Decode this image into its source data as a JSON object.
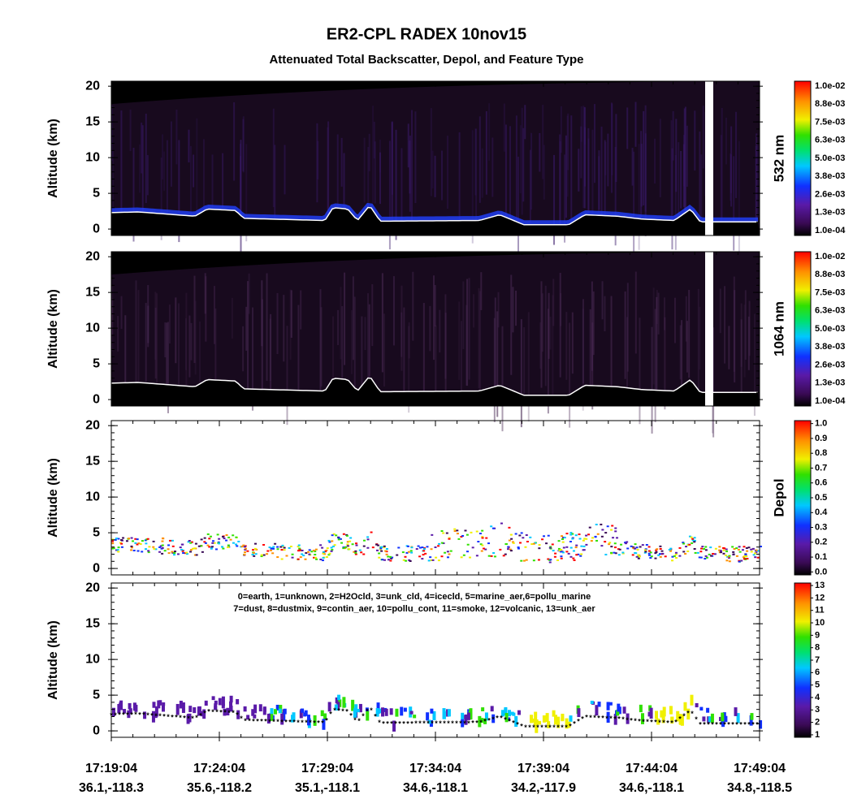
{
  "title": "ER2-CPL RADEX 10nov15",
  "subtitle": "Attenuated Total Backscatter, Depol, and Feature Type",
  "x_axis": {
    "ticks": [
      "17:19:04",
      "17:24:04",
      "17:29:04",
      "17:34:04",
      "17:39:04",
      "17:44:04",
      "17:49:04"
    ],
    "locations": [
      "36.1,-118.3",
      "35.6,-118.2",
      "35.1,-118.1",
      "34.6,-118.1",
      "34.2,-117.9",
      "34.6,-118.1",
      "34.8,-118.5"
    ]
  },
  "chart_data": [
    {
      "type": "heatmap",
      "ylabel": "Altitude (km)",
      "ylim": [
        -0.9,
        20.7
      ],
      "yticks": [
        0,
        5,
        10,
        15,
        20
      ],
      "colorbar": {
        "label": "532 nm",
        "ticks": [
          "1.0e-02",
          "8.8e-03",
          "7.5e-03",
          "6.3e-03",
          "5.0e-03",
          "3.8e-03",
          "2.6e-03",
          "1.3e-03",
          "1.0e-04"
        ]
      }
    },
    {
      "type": "heatmap",
      "ylabel": "Altitude (km)",
      "ylim": [
        -0.9,
        20.7
      ],
      "yticks": [
        0,
        5,
        10,
        15,
        20
      ],
      "colorbar": {
        "label": "1064 nm",
        "ticks": [
          "1.0e-02",
          "8.8e-03",
          "7.5e-03",
          "6.3e-03",
          "5.0e-03",
          "3.8e-03",
          "2.6e-03",
          "1.3e-03",
          "1.0e-04"
        ]
      }
    },
    {
      "type": "heatmap",
      "ylabel": "Altitude (km)",
      "ylim": [
        -0.9,
        20.7
      ],
      "yticks": [
        0,
        5,
        10,
        15,
        20
      ],
      "colorbar": {
        "label": "Depol",
        "clim": [
          -0.02,
          1.02
        ],
        "ticks": [
          {
            "value": 1.0,
            "label": "1.0"
          },
          {
            "value": 0.9,
            "label": "0.9"
          },
          {
            "value": 0.8,
            "label": "0.8"
          },
          {
            "value": 0.7,
            "label": "0.7"
          },
          {
            "value": 0.6,
            "label": "0.6"
          },
          {
            "value": 0.5,
            "label": "0.5"
          },
          {
            "value": 0.4,
            "label": "0.4"
          },
          {
            "value": 0.3,
            "label": "0.3"
          },
          {
            "value": 0.2,
            "label": "0.2"
          },
          {
            "value": 0.1,
            "label": "0.1"
          },
          {
            "value": 0.0,
            "label": "0.0"
          }
        ]
      }
    },
    {
      "type": "heatmap",
      "ylabel": "Altitude (km)",
      "ylim": [
        -0.9,
        20.7
      ],
      "yticks": [
        0,
        5,
        10,
        15,
        20
      ],
      "annotation": [
        "0=earth, 1=unknown, 2=H2Ocld, 3=unk_cld, 4=icecld, 5=marine_aer,6=pollu_marine",
        "7=dust, 8=dustmix, 9=contin_aer, 10=pollu_cont, 11=smoke, 12=volcanic, 13=unk_aer"
      ],
      "colorbar": {
        "clim": [
          0.8,
          13.2
        ],
        "ticks": [
          13,
          12,
          11,
          10,
          9,
          8,
          7,
          6,
          5,
          4,
          3,
          2,
          1
        ]
      }
    }
  ]
}
